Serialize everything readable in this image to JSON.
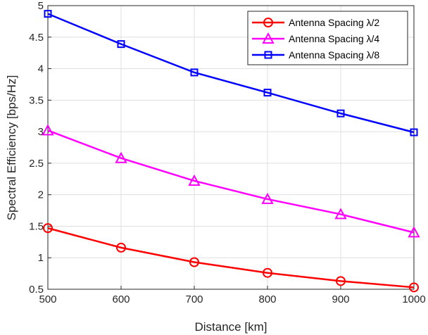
{
  "chart_data": {
    "type": "line",
    "title": "",
    "xlabel": "Distance [km]",
    "ylabel": "Spectral Efficiency [bps/Hz]",
    "xlim": [
      500,
      1000
    ],
    "ylim": [
      0.5,
      5
    ],
    "x": [
      500,
      600,
      700,
      800,
      900,
      1000
    ],
    "xticks": [
      "500",
      "600",
      "700",
      "800",
      "900",
      "1000"
    ],
    "yticks": [
      "0.5",
      "1",
      "1.5",
      "2",
      "2.5",
      "3",
      "3.5",
      "4",
      "4.5",
      "5"
    ],
    "grid": true,
    "legend_position": "top-right",
    "series": [
      {
        "name": "Antenna Spacing λ/2",
        "color": "#ff0000",
        "marker": "circle",
        "values": [
          1.47,
          1.16,
          0.93,
          0.76,
          0.63,
          0.53
        ]
      },
      {
        "name": "Antenna Spacing λ/4",
        "color": "#ff00ff",
        "marker": "triangle",
        "values": [
          3.02,
          2.58,
          2.22,
          1.93,
          1.69,
          1.4
        ]
      },
      {
        "name": "Antenna Spacing λ/8",
        "color": "#0000ff",
        "marker": "square",
        "values": [
          4.87,
          4.39,
          3.94,
          3.62,
          3.29,
          2.99
        ]
      }
    ]
  }
}
